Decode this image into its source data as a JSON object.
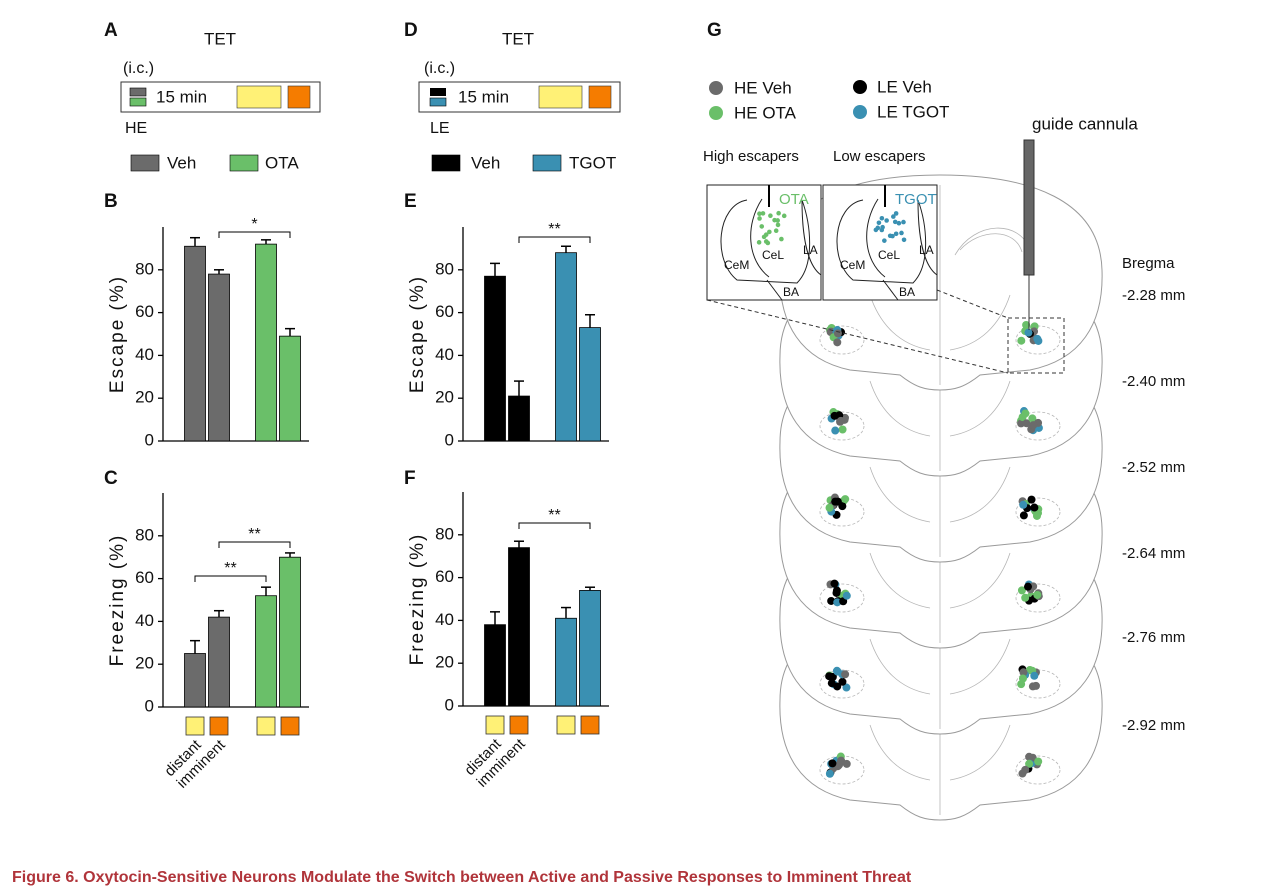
{
  "panel_labels": [
    "A",
    "B",
    "C",
    "D",
    "E",
    "F",
    "G"
  ],
  "panel_a": {
    "title": "TET",
    "route": "(i.c.)",
    "duration": "15 min",
    "group": "HE"
  },
  "panel_d": {
    "title": "TET",
    "route": "(i.c.)",
    "duration": "15 min",
    "group": "LE"
  },
  "chart_data": [
    {
      "type": "bar",
      "ylabel": "Escape (%)",
      "ylim": [
        0,
        100
      ],
      "yticks": [
        0,
        20,
        40,
        60,
        80
      ],
      "series": [
        {
          "name": "Veh",
          "color": "#6b6b6b",
          "values": [
            91,
            78
          ],
          "errors": [
            4,
            2
          ]
        },
        {
          "name": "OTA",
          "color": "#6abf69",
          "values": [
            92,
            49
          ],
          "errors": [
            2,
            3.5
          ]
        }
      ],
      "annotations": [
        "*"
      ]
    },
    {
      "type": "bar",
      "ylabel": "Freezing (%)",
      "ylim": [
        0,
        100
      ],
      "yticks": [
        0,
        20,
        40,
        60,
        80
      ],
      "categories": [
        "distant",
        "imminent"
      ],
      "series": [
        {
          "color": "#6b6b6b",
          "values": [
            25,
            42
          ],
          "errors": [
            6,
            3
          ]
        },
        {
          "color": "#6abf69",
          "values": [
            52,
            70
          ],
          "errors": [
            4,
            2
          ]
        }
      ],
      "annotations": [
        "**",
        "**"
      ]
    },
    {
      "type": "bar",
      "ylabel": "Escape (%)",
      "ylim": [
        0,
        100
      ],
      "yticks": [
        0,
        20,
        40,
        60,
        80
      ],
      "series": [
        {
          "name": "Veh",
          "color": "#000000",
          "values": [
            77,
            21
          ],
          "errors": [
            6,
            7
          ]
        },
        {
          "name": "TGOT",
          "color": "#3a90b2",
          "values": [
            88,
            53
          ],
          "errors": [
            3,
            6
          ]
        }
      ],
      "annotations": [
        "**"
      ]
    },
    {
      "type": "bar",
      "ylabel": "Freezing (%)",
      "ylim": [
        0,
        100
      ],
      "yticks": [
        0,
        20,
        40,
        60,
        80
      ],
      "categories": [
        "distant",
        "imminent"
      ],
      "series": [
        {
          "color": "#000000",
          "values": [
            38,
            74
          ],
          "errors": [
            6,
            3
          ]
        },
        {
          "color": "#3a90b2",
          "values": [
            41,
            54
          ],
          "errors": [
            5,
            1.5
          ]
        }
      ],
      "annotations": [
        "**"
      ]
    }
  ],
  "panel_g": {
    "legend": [
      "HE Veh",
      "HE OTA",
      "LE Veh",
      "LE TGOT"
    ],
    "cannula_label": "guide cannula",
    "insets": [
      {
        "title": "High escapers",
        "drug": "OTA",
        "regions": [
          "CeM",
          "CeL",
          "LA",
          "BA"
        ]
      },
      {
        "title": "Low escapers",
        "drug": "TGOT",
        "regions": [
          "CeM",
          "CeL",
          "LA",
          "BA"
        ]
      }
    ],
    "bregma_title": "Bregma",
    "bregma_levels": [
      "-2.28 mm",
      "-2.40 mm",
      "-2.52 mm",
      "-2.64 mm",
      "-2.76 mm",
      "-2.92 mm"
    ]
  },
  "caption": "Figure 6.  Oxytocin-Sensitive Neurons Modulate the Switch between Active and Passive Responses to Imminent Threat"
}
